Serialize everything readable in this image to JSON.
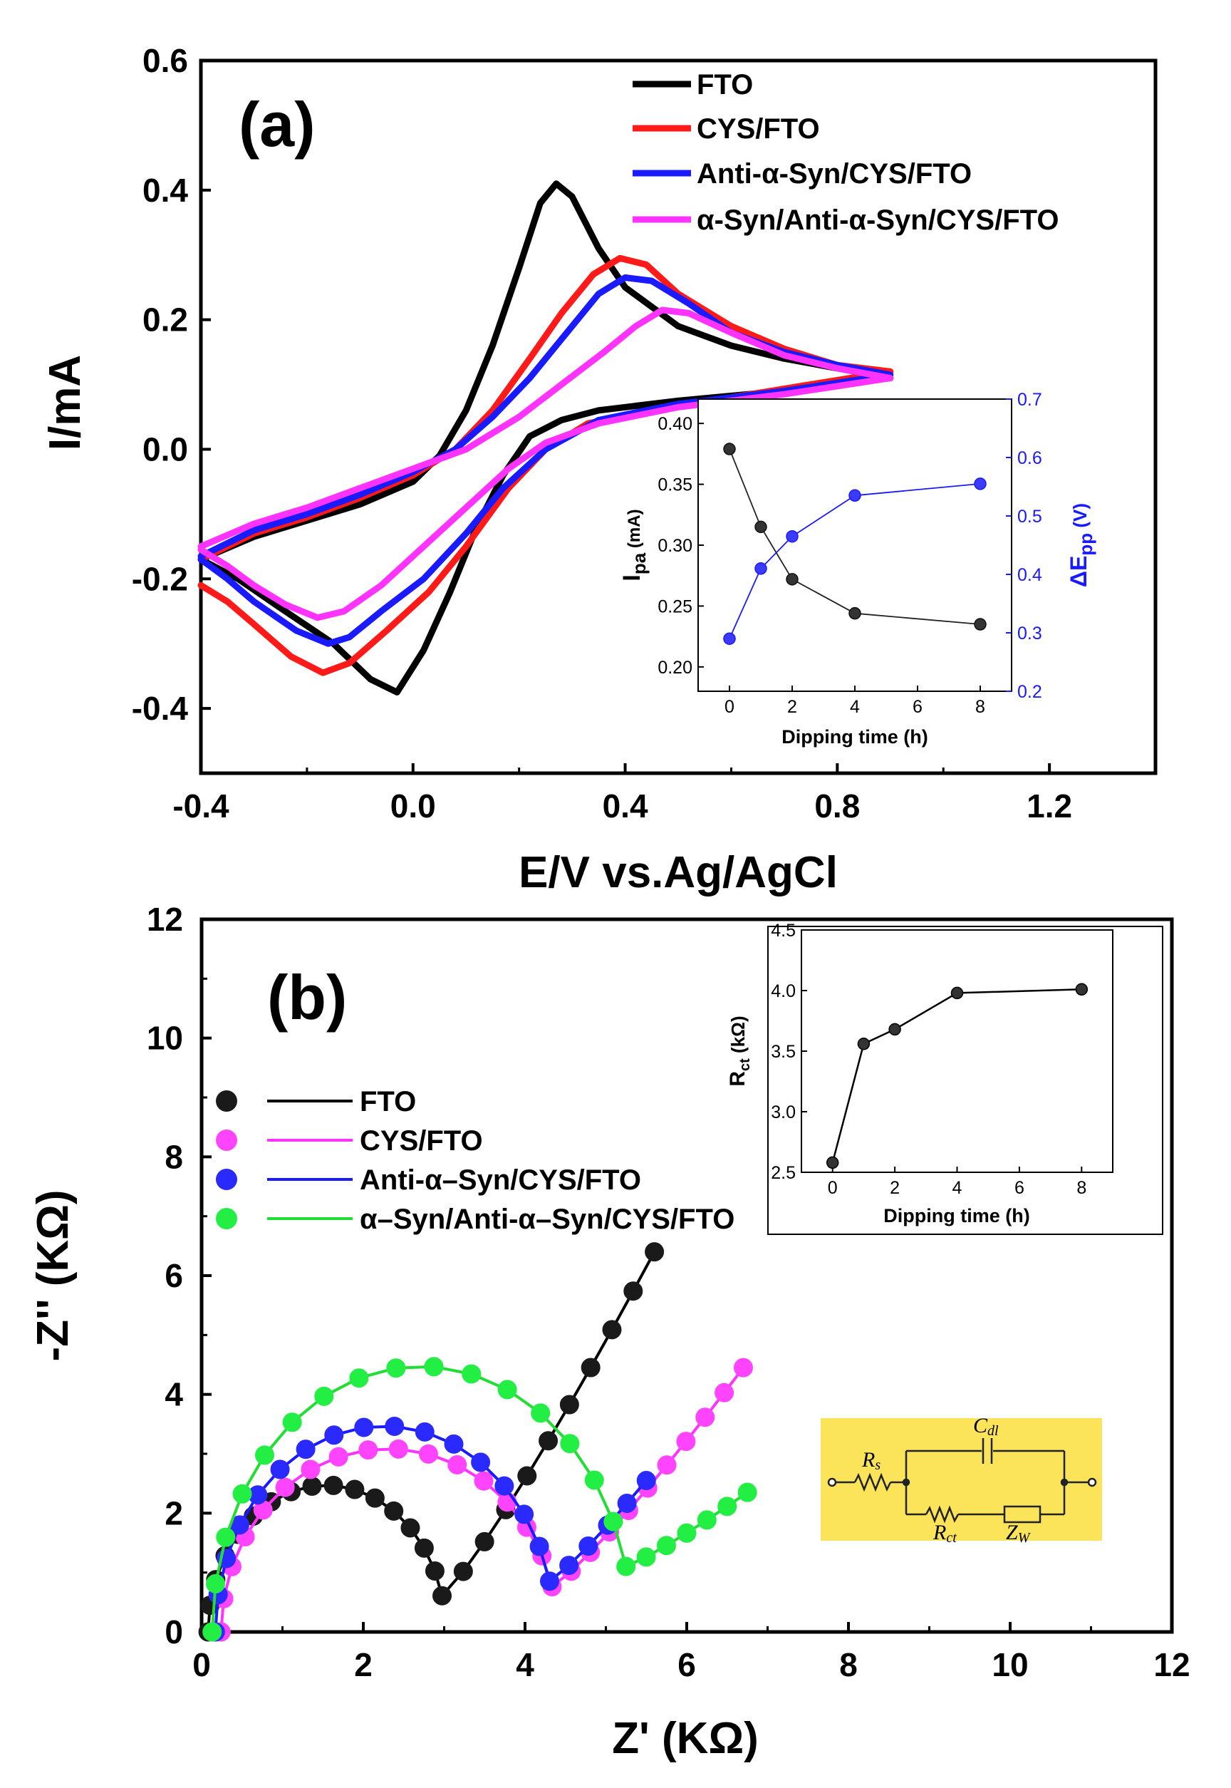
{
  "chart_data": [
    {
      "id": "a",
      "type": "line",
      "panel_label": "(a)",
      "xlabel": "E/V vs.Ag/AgCl",
      "ylabel": "I/mA",
      "xlim": [
        -0.4,
        1.4
      ],
      "ylim": [
        -0.5,
        0.6
      ],
      "xticks": [
        "-0.4",
        "0.0",
        "0.4",
        "0.8",
        "1.2"
      ],
      "yticks": [
        "-0.4",
        "-0.2",
        "0.0",
        "0.2",
        "0.4",
        "0.6"
      ],
      "xtick_values": [
        -0.4,
        0.0,
        0.4,
        0.8,
        1.2
      ],
      "ytick_values": [
        -0.4,
        -0.2,
        0.0,
        0.2,
        0.4,
        0.6
      ],
      "legend_position": "top-right",
      "series": [
        {
          "name": "FTO",
          "color": "#000000",
          "forward": [
            [
              -0.4,
              -0.17
            ],
            [
              -0.3,
              -0.135
            ],
            [
              -0.2,
              -0.11
            ],
            [
              -0.1,
              -0.085
            ],
            [
              0.0,
              -0.05
            ],
            [
              0.05,
              -0.01
            ],
            [
              0.1,
              0.06
            ],
            [
              0.15,
              0.16
            ],
            [
              0.2,
              0.28
            ],
            [
              0.24,
              0.38
            ],
            [
              0.27,
              0.41
            ],
            [
              0.3,
              0.39
            ],
            [
              0.35,
              0.31
            ],
            [
              0.4,
              0.25
            ],
            [
              0.5,
              0.19
            ],
            [
              0.6,
              0.16
            ],
            [
              0.7,
              0.14
            ],
            [
              0.8,
              0.125
            ],
            [
              0.9,
              0.11
            ]
          ],
          "reverse": [
            [
              0.9,
              0.11
            ],
            [
              0.7,
              0.09
            ],
            [
              0.5,
              0.075
            ],
            [
              0.35,
              0.06
            ],
            [
              0.28,
              0.045
            ],
            [
              0.22,
              0.02
            ],
            [
              0.17,
              -0.04
            ],
            [
              0.12,
              -0.12
            ],
            [
              0.07,
              -0.22
            ],
            [
              0.02,
              -0.31
            ],
            [
              -0.03,
              -0.375
            ],
            [
              -0.08,
              -0.355
            ],
            [
              -0.15,
              -0.3
            ],
            [
              -0.25,
              -0.245
            ],
            [
              -0.33,
              -0.2
            ],
            [
              -0.4,
              -0.17
            ]
          ]
        },
        {
          "name": "CYS/FTO",
          "color": "#ff1a1a",
          "forward": [
            [
              -0.4,
              -0.17
            ],
            [
              -0.3,
              -0.13
            ],
            [
              -0.2,
              -0.105
            ],
            [
              -0.1,
              -0.075
            ],
            [
              0.0,
              -0.04
            ],
            [
              0.08,
              0.0
            ],
            [
              0.15,
              0.06
            ],
            [
              0.22,
              0.14
            ],
            [
              0.28,
              0.21
            ],
            [
              0.34,
              0.27
            ],
            [
              0.39,
              0.295
            ],
            [
              0.44,
              0.285
            ],
            [
              0.5,
              0.24
            ],
            [
              0.6,
              0.19
            ],
            [
              0.7,
              0.155
            ],
            [
              0.8,
              0.13
            ],
            [
              0.9,
              0.12
            ]
          ],
          "reverse": [
            [
              0.9,
              0.12
            ],
            [
              0.75,
              0.1
            ],
            [
              0.6,
              0.08
            ],
            [
              0.45,
              0.06
            ],
            [
              0.33,
              0.04
            ],
            [
              0.25,
              0.0
            ],
            [
              0.18,
              -0.06
            ],
            [
              0.1,
              -0.15
            ],
            [
              0.03,
              -0.22
            ],
            [
              -0.05,
              -0.28
            ],
            [
              -0.12,
              -0.33
            ],
            [
              -0.17,
              -0.345
            ],
            [
              -0.23,
              -0.32
            ],
            [
              -0.3,
              -0.27
            ],
            [
              -0.35,
              -0.235
            ],
            [
              -0.4,
              -0.21
            ]
          ]
        },
        {
          "name": "Anti-α-Syn/CYS/FTO",
          "color": "#1a1aff",
          "forward": [
            [
              -0.4,
              -0.165
            ],
            [
              -0.3,
              -0.125
            ],
            [
              -0.2,
              -0.1
            ],
            [
              -0.1,
              -0.07
            ],
            [
              0.0,
              -0.035
            ],
            [
              0.08,
              0.0
            ],
            [
              0.15,
              0.05
            ],
            [
              0.22,
              0.11
            ],
            [
              0.29,
              0.18
            ],
            [
              0.35,
              0.24
            ],
            [
              0.4,
              0.265
            ],
            [
              0.45,
              0.26
            ],
            [
              0.52,
              0.225
            ],
            [
              0.6,
              0.18
            ],
            [
              0.7,
              0.15
            ],
            [
              0.8,
              0.13
            ],
            [
              0.9,
              0.115
            ]
          ],
          "reverse": [
            [
              0.9,
              0.115
            ],
            [
              0.7,
              0.09
            ],
            [
              0.5,
              0.07
            ],
            [
              0.35,
              0.045
            ],
            [
              0.25,
              0.0
            ],
            [
              0.17,
              -0.06
            ],
            [
              0.1,
              -0.13
            ],
            [
              0.02,
              -0.2
            ],
            [
              -0.06,
              -0.25
            ],
            [
              -0.12,
              -0.29
            ],
            [
              -0.16,
              -0.3
            ],
            [
              -0.22,
              -0.28
            ],
            [
              -0.3,
              -0.235
            ],
            [
              -0.35,
              -0.2
            ],
            [
              -0.4,
              -0.17
            ]
          ]
        },
        {
          "name": "α-Syn/Anti-α-Syn/CYS/FTO",
          "color": "#ff33ff",
          "forward": [
            [
              -0.4,
              -0.15
            ],
            [
              -0.3,
              -0.115
            ],
            [
              -0.2,
              -0.09
            ],
            [
              -0.1,
              -0.06
            ],
            [
              0.0,
              -0.03
            ],
            [
              0.1,
              0.0
            ],
            [
              0.2,
              0.05
            ],
            [
              0.28,
              0.1
            ],
            [
              0.36,
              0.15
            ],
            [
              0.42,
              0.19
            ],
            [
              0.47,
              0.215
            ],
            [
              0.52,
              0.21
            ],
            [
              0.6,
              0.18
            ],
            [
              0.7,
              0.145
            ],
            [
              0.8,
              0.125
            ],
            [
              0.9,
              0.11
            ]
          ],
          "reverse": [
            [
              0.9,
              0.11
            ],
            [
              0.7,
              0.085
            ],
            [
              0.5,
              0.065
            ],
            [
              0.35,
              0.04
            ],
            [
              0.25,
              0.01
            ],
            [
              0.18,
              -0.03
            ],
            [
              0.1,
              -0.09
            ],
            [
              0.02,
              -0.15
            ],
            [
              -0.06,
              -0.21
            ],
            [
              -0.13,
              -0.25
            ],
            [
              -0.18,
              -0.26
            ],
            [
              -0.24,
              -0.24
            ],
            [
              -0.3,
              -0.21
            ],
            [
              -0.35,
              -0.18
            ],
            [
              -0.4,
              -0.155
            ]
          ]
        }
      ],
      "inset": {
        "type": "scatter",
        "xlabel": "Dipping time (h)",
        "ylabel_left_main": "I",
        "ylabel_left_sub": "pa",
        "ylabel_left_unit": " (mA)",
        "ylabel_right_main": "ΔE",
        "ylabel_right_sub": "pp",
        "ylabel_right_unit": " (V)",
        "xlim": [
          -1,
          9
        ],
        "ylim_left": [
          0.18,
          0.42
        ],
        "ylim_right": [
          0.2,
          0.7
        ],
        "xticks": [
          "0",
          "2",
          "4",
          "6",
          "8"
        ],
        "xtick_values": [
          0,
          2,
          4,
          6,
          8
        ],
        "yticks_left": [
          "0.20",
          "0.25",
          "0.30",
          "0.35",
          "0.40"
        ],
        "ytick_values_left": [
          0.2,
          0.25,
          0.3,
          0.35,
          0.4
        ],
        "yticks_right": [
          "0.2",
          "0.3",
          "0.4",
          "0.5",
          "0.6",
          "0.7"
        ],
        "ytick_values_right": [
          0.2,
          0.3,
          0.4,
          0.5,
          0.6,
          0.7
        ],
        "x": [
          0,
          1,
          2,
          4,
          8
        ],
        "ipa": [
          0.379,
          0.315,
          0.272,
          0.244,
          0.235
        ],
        "delta_epp": [
          0.29,
          0.41,
          0.465,
          0.535,
          0.555
        ],
        "ipa_color": "#222222",
        "epp_color": "#1a1aff"
      }
    },
    {
      "id": "b",
      "type": "scatter",
      "panel_label": "(b)",
      "xlabel": "Z' (KΩ)",
      "ylabel": "-Z'' (KΩ)",
      "xlim": [
        0,
        12
      ],
      "ylim": [
        0,
        12
      ],
      "xticks": [
        "0",
        "2",
        "4",
        "6",
        "8",
        "10",
        "12"
      ],
      "yticks": [
        "0",
        "2",
        "4",
        "6",
        "8",
        "10",
        "12"
      ],
      "xtick_values": [
        0,
        2,
        4,
        6,
        8,
        10,
        12
      ],
      "ytick_values": [
        0,
        2,
        4,
        6,
        8,
        10,
        12
      ],
      "legend_position": "middle-left",
      "series": [
        {
          "name": "FTO",
          "marker_color": "#1a1a1a",
          "line_color": "#000000",
          "center": 1.55,
          "radius": 1.47,
          "arc_yscale": 1.7,
          "tail_end": [
            5.6,
            6.4
          ],
          "tail_points": 10
        },
        {
          "name": "CYS/FTO",
          "marker_color": "#ff44ff",
          "line_color": "#ff33ff",
          "center": 2.32,
          "radius": 2.08,
          "arc_yscale": 1.5,
          "tail_end": [
            6.7,
            4.45
          ],
          "tail_points": 10
        },
        {
          "name": "Anti-α–Syn/CYS/FTO",
          "marker_color": "#2a2aff",
          "line_color": "#1a1aff",
          "center": 2.27,
          "radius": 2.1,
          "arc_yscale": 1.67,
          "tail_end": [
            5.5,
            2.55
          ],
          "tail_points": 5
        },
        {
          "name": "α–Syn/Anti-α–Syn/CYS/FTO",
          "marker_color": "#22ee44",
          "line_color": "#22dd33",
          "center": 2.73,
          "radius": 2.6,
          "arc_yscale": 1.74,
          "tail_end": [
            6.75,
            2.35
          ],
          "tail_points": 6
        }
      ],
      "inset": {
        "type": "line",
        "xlabel": "Dipping time (h)",
        "ylabel_main": "R",
        "ylabel_sub": "ct",
        "ylabel_unit": " (kΩ)",
        "xlim": [
          -1,
          9
        ],
        "ylim": [
          2.5,
          4.5
        ],
        "xticks": [
          "0",
          "2",
          "4",
          "6",
          "8"
        ],
        "xtick_values": [
          0,
          2,
          4,
          6,
          8
        ],
        "yticks": [
          "2.5",
          "3.0",
          "3.5",
          "4.0",
          "4.5"
        ],
        "ytick_values": [
          2.5,
          3.0,
          3.5,
          4.0,
          4.5
        ],
        "x": [
          0,
          1,
          2,
          4,
          8
        ],
        "rct": [
          2.58,
          3.56,
          3.68,
          3.98,
          4.01
        ]
      },
      "circuit": {
        "background": "#fbe35a",
        "rs": "R",
        "rs_sub": "s",
        "cdl": "C",
        "cdl_sub": "dl",
        "rct": "R",
        "rct_sub": "ct",
        "zw": "Z",
        "zw_sub": "W"
      }
    }
  ]
}
